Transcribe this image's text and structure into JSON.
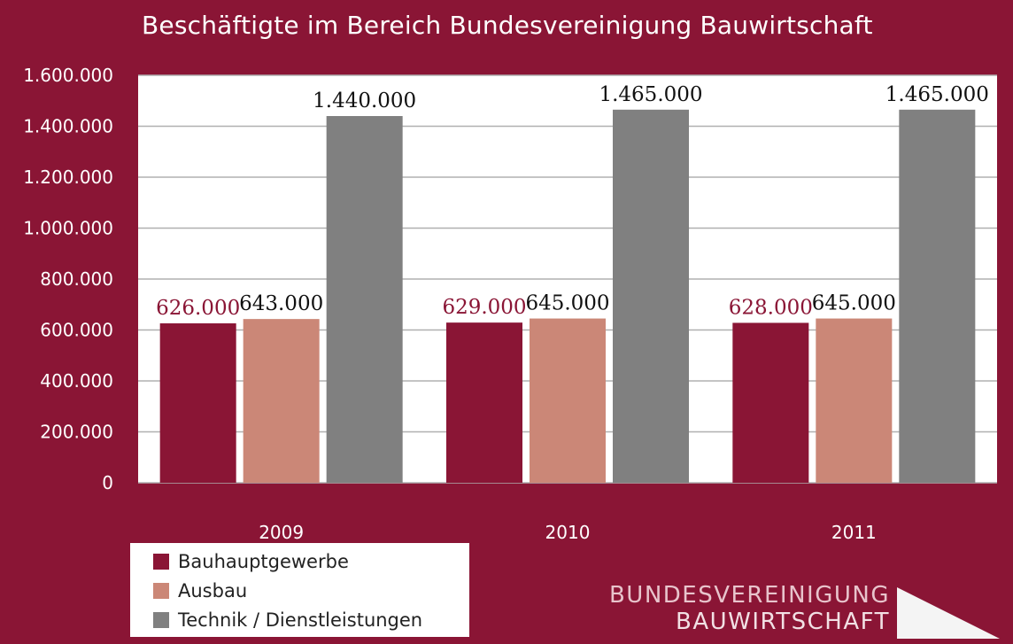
{
  "chart_data": {
    "type": "bar",
    "title": "Beschäftigte im Bereich Bundesvereinigung Bauwirtschaft",
    "categories": [
      "2009",
      "2010",
      "2011"
    ],
    "series": [
      {
        "name": "Bauhauptgewerbe",
        "values": [
          626000,
          629000,
          628000
        ],
        "labels": [
          "626.000",
          "629.000",
          "628.000"
        ],
        "color": "#8a1535",
        "label_color": "#8a1535"
      },
      {
        "name": "Ausbau",
        "values": [
          643000,
          645000,
          645000
        ],
        "labels": [
          "643.000",
          "645.000",
          "645.000"
        ],
        "color": "#cb8777",
        "label_color": "#111111"
      },
      {
        "name": "Technik / Dienstleistungen",
        "values": [
          1440000,
          1465000,
          1465000
        ],
        "labels": [
          "1.440.000",
          "1.465.000",
          "1.465.000"
        ],
        "color": "#808080",
        "label_color": "#111111"
      }
    ],
    "ylim": [
      0,
      1600000
    ],
    "yticks": [
      0,
      200000,
      400000,
      600000,
      800000,
      1000000,
      1200000,
      1400000,
      1600000
    ],
    "ytick_labels": [
      "0",
      "200.000",
      "400.000",
      "600.000",
      "800.000",
      "1.000.000",
      "1.200.000",
      "1.400.000",
      "1.600.000"
    ],
    "grid": true,
    "legend_position": "bottom-left",
    "plot_background": "#ffffff",
    "background": "#8a1535"
  },
  "logo": {
    "line1": "BUNDESVEREINIGUNG",
    "line2": "BAUWIRTSCHAFT"
  }
}
